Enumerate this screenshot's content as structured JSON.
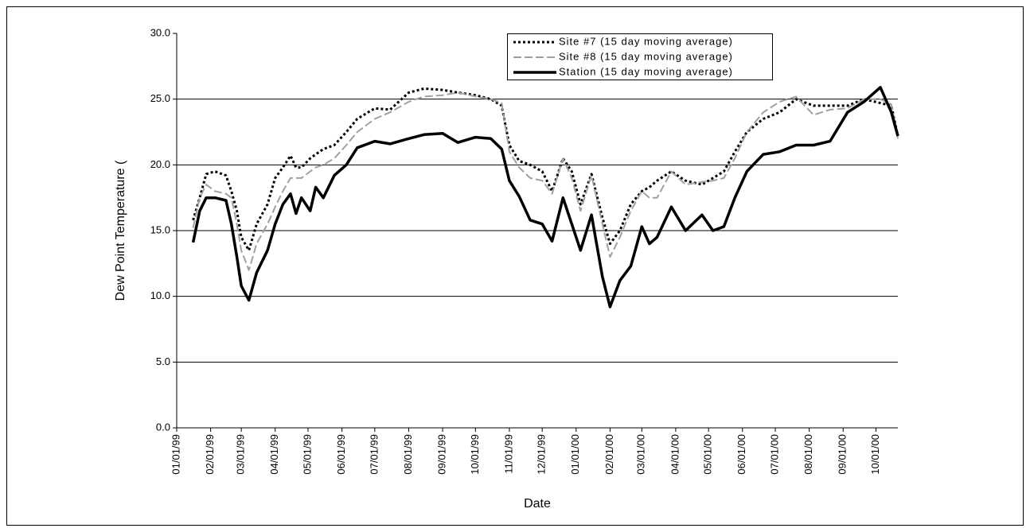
{
  "chart_data": {
    "type": "line",
    "x_label": "Date",
    "y_label": "Dew Point Temperature (",
    "xlim": [
      "01/01/99",
      "10/21/00"
    ],
    "xticks": [
      "01/01/99",
      "02/01/99",
      "03/01/99",
      "04/01/99",
      "05/01/99",
      "06/01/99",
      "07/01/99",
      "08/01/99",
      "09/01/99",
      "10/01/99",
      "11/01/99",
      "12/01/99",
      "01/01/00",
      "02/01/00",
      "03/01/00",
      "04/01/00",
      "05/01/00",
      "06/01/00",
      "07/01/00",
      "08/01/00",
      "09/01/00",
      "10/01/00"
    ],
    "ylim": [
      0,
      30
    ],
    "yticks": [
      {
        "value": 0,
        "label": "0.0"
      },
      {
        "value": 5,
        "label": "5.0"
      },
      {
        "value": 10,
        "label": "10.0"
      },
      {
        "value": 15,
        "label": "15.0"
      },
      {
        "value": 20,
        "label": "20.0"
      },
      {
        "value": 25,
        "label": "25.0"
      },
      {
        "value": 30,
        "label": "30.0"
      }
    ],
    "grid": true,
    "legend": "top-right",
    "x": [
      "01/16/99",
      "01/22/99",
      "01/28/99",
      "02/05/99",
      "02/15/99",
      "02/20/99",
      "02/25/99",
      "03/01/99",
      "03/08/99",
      "03/15/99",
      "03/25/99",
      "04/01/99",
      "04/08/99",
      "04/15/99",
      "04/20/99",
      "04/25/99",
      "05/03/99",
      "05/08/99",
      "05/15/99",
      "05/25/99",
      "06/05/99",
      "06/15/99",
      "07/01/99",
      "07/15/99",
      "08/01/99",
      "08/15/99",
      "09/01/99",
      "09/15/99",
      "10/01/99",
      "10/15/99",
      "10/25/99",
      "11/01/99",
      "11/10/99",
      "11/20/99",
      "12/01/99",
      "12/10/99",
      "12/20/99",
      "12/28/99",
      "01/05/00",
      "01/15/00",
      "01/25/00",
      "02/01/00",
      "02/10/00",
      "02/20/00",
      "03/01/00",
      "03/08/00",
      "03/15/00",
      "03/28/00",
      "04/10/00",
      "04/25/00",
      "05/05/00",
      "05/15/00",
      "05/25/00",
      "06/05/00",
      "06/20/00",
      "07/05/00",
      "07/20/00",
      "08/05/00",
      "08/20/00",
      "09/05/00",
      "09/20/00",
      "10/05/00",
      "10/15/00",
      "10/21/00"
    ],
    "series": [
      {
        "name": "Site #7 (15 day moving average)",
        "color": "#000000",
        "line_style": "dotted",
        "values": [
          15.8,
          17.5,
          19.3,
          19.5,
          19.2,
          18.0,
          16.5,
          14.5,
          13.5,
          15.5,
          17.0,
          19.0,
          19.8,
          20.7,
          19.8,
          19.8,
          20.5,
          20.8,
          21.2,
          21.5,
          22.5,
          23.5,
          24.3,
          24.2,
          25.5,
          25.8,
          25.7,
          25.5,
          25.3,
          25.0,
          24.5,
          21.5,
          20.3,
          20.0,
          19.5,
          18.0,
          20.5,
          19.5,
          17.0,
          19.3,
          16.0,
          14.0,
          15.0,
          17.0,
          18.0,
          18.3,
          18.8,
          19.5,
          18.8,
          18.5,
          19.0,
          19.5,
          21.0,
          22.5,
          23.5,
          24.0,
          25.0,
          24.5,
          24.5,
          24.5,
          25.0,
          24.7,
          24.5,
          22.2
        ]
      },
      {
        "name": "Site #8 (15 day moving average)",
        "color": "#a0a0a0",
        "line_style": "dashed",
        "values": [
          15.2,
          17.5,
          18.5,
          18.0,
          17.8,
          17.5,
          15.5,
          13.5,
          12.0,
          14.0,
          15.5,
          16.8,
          18.0,
          19.0,
          19.0,
          19.0,
          19.5,
          19.8,
          20.0,
          20.5,
          21.5,
          22.5,
          23.5,
          24.0,
          24.8,
          25.2,
          25.3,
          25.5,
          25.2,
          25.0,
          24.7,
          21.0,
          19.8,
          19.0,
          18.8,
          17.8,
          20.5,
          19.0,
          16.5,
          19.2,
          15.5,
          13.0,
          14.5,
          16.5,
          18.0,
          17.5,
          17.5,
          19.5,
          18.5,
          18.7,
          18.8,
          19.0,
          20.5,
          22.5,
          24.0,
          24.8,
          25.2,
          23.8,
          24.2,
          24.3,
          25.0,
          25.0,
          24.6,
          22.0
        ]
      },
      {
        "name": "Station (15 day moving average)",
        "color": "#000000",
        "line_style": "solid",
        "values": [
          14.1,
          16.5,
          17.5,
          17.5,
          17.3,
          15.5,
          13.0,
          10.8,
          9.7,
          11.8,
          13.5,
          15.5,
          17.0,
          17.8,
          16.3,
          17.5,
          16.5,
          18.3,
          17.5,
          19.2,
          20.0,
          21.3,
          21.8,
          21.6,
          22.0,
          22.3,
          22.4,
          21.7,
          22.1,
          22.0,
          21.2,
          18.8,
          17.6,
          15.8,
          15.5,
          14.2,
          17.5,
          15.5,
          13.5,
          16.2,
          11.5,
          9.2,
          11.2,
          12.3,
          15.3,
          14.0,
          14.5,
          16.8,
          15.0,
          16.2,
          15.0,
          15.3,
          17.5,
          19.5,
          20.8,
          21.0,
          21.5,
          21.5,
          21.8,
          24.0,
          24.8,
          25.9,
          24.0,
          22.2
        ]
      }
    ]
  }
}
